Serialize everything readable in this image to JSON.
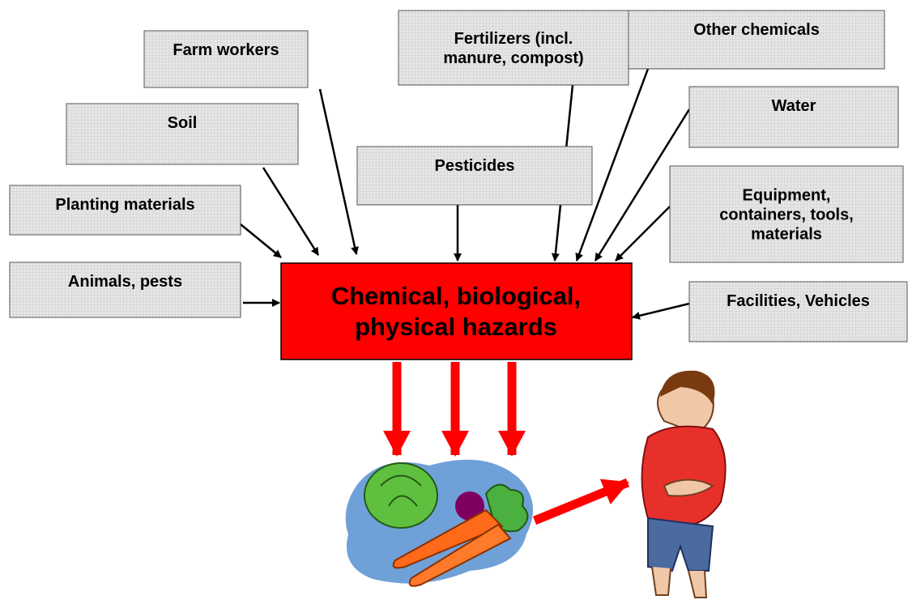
{
  "nodes": [
    {
      "lines": [
        "Farm workers"
      ]
    },
    {
      "lines": [
        "Fertilizers (incl.",
        "manure, compost)"
      ]
    },
    {
      "lines": [
        "Other chemicals"
      ]
    },
    {
      "lines": [
        "Soil"
      ]
    },
    {
      "lines": [
        "Water"
      ]
    },
    {
      "lines": [
        "Pesticides"
      ]
    },
    {
      "lines": [
        "Planting materials"
      ]
    },
    {
      "lines": [
        "Equipment,",
        "containers, tools,",
        "materials"
      ]
    },
    {
      "lines": [
        "Animals, pests"
      ]
    },
    {
      "lines": [
        "Facilities, Vehicles"
      ]
    }
  ],
  "center": {
    "lines": [
      "Chemical, biological,",
      "physical hazards"
    ]
  }
}
